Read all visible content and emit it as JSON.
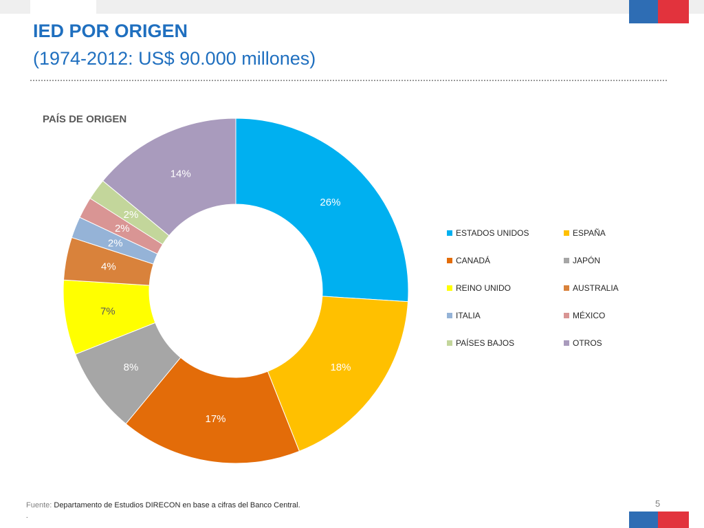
{
  "header": {
    "title": "IED POR ORIGEN",
    "subtitle": "(1974-2012: US$ 90.000 millones)"
  },
  "flag_colors": {
    "blue": "#2e6db4",
    "red": "#e2333d"
  },
  "chart_data": {
    "type": "pie",
    "style": "donut",
    "title": "PAÍS DE ORIGEN",
    "legend_position": "right",
    "categories": [
      "ESTADOS UNIDOS",
      "ESPAÑA",
      "CANADÁ",
      "JAPÓN",
      "REINO UNIDO",
      "AUSTRALIA",
      "ITALIA",
      "MÉXICO",
      "PAÍSES BAJOS",
      "OTROS"
    ],
    "values": [
      26,
      18,
      17,
      8,
      7,
      4,
      2,
      2,
      2,
      14
    ],
    "labels": [
      "26%",
      "18%",
      "17%",
      "8%",
      "7%",
      "4%",
      "2%",
      "2%",
      "2%",
      "14%"
    ],
    "colors": [
      "#00b0f0",
      "#ffc000",
      "#e36c09",
      "#a6a6a6",
      "#ffff00",
      "#d9823b",
      "#95b3d7",
      "#d99594",
      "#c3d69b",
      "#a99bbd"
    ],
    "label_colors": [
      "#ffffff",
      "#ffffff",
      "#ffffff",
      "#ffffff",
      "#595959",
      "#ffffff",
      "#ffffff",
      "#ffffff",
      "#ffffff",
      "#ffffff"
    ],
    "unit": "%"
  },
  "footer": {
    "source_label": "Fuente:",
    "source_text": "Departamento de Estudios DIRECON en base a cifras del Banco Central.",
    "dot": ".",
    "page_number": "5"
  }
}
